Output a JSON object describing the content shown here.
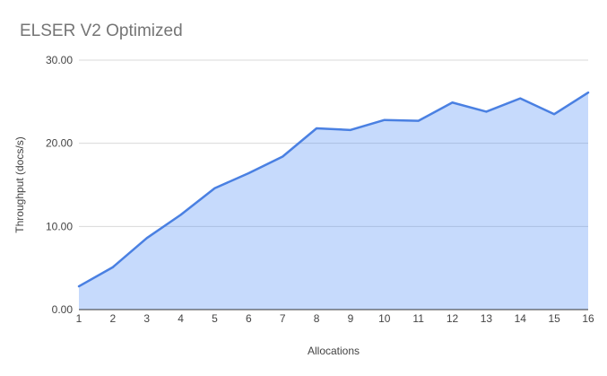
{
  "chart_data": {
    "type": "area",
    "title": "ELSER V2 Optimized",
    "xlabel": "Allocations",
    "ylabel": "Throughput (docs/s)",
    "categories": [
      "1",
      "2",
      "3",
      "4",
      "5",
      "6",
      "7",
      "8",
      "9",
      "10",
      "11",
      "12",
      "13",
      "14",
      "15",
      "16"
    ],
    "values": [
      2.8,
      5.1,
      8.6,
      11.4,
      14.6,
      16.4,
      18.4,
      21.8,
      21.6,
      22.8,
      22.7,
      24.9,
      23.8,
      25.4,
      23.5,
      26.1
    ],
    "series_name": "Throughput",
    "xlim": [
      1,
      16
    ],
    "ylim": [
      0,
      30
    ],
    "ytick_values": [
      0,
      10,
      20,
      30
    ],
    "ytick_labels": [
      "0.00",
      "10.00",
      "20.00",
      "30.00"
    ],
    "grid": true,
    "legend": "none",
    "colors": {
      "line": "#4a80e2",
      "fill": "#4285f4",
      "fill_opacity": 0.3,
      "gridline": "#dadada",
      "axis_line": "#333333",
      "tick_text": "#444444",
      "axis_title_text": "#434343",
      "title_text": "#757575",
      "background": "#ffffff"
    }
  }
}
